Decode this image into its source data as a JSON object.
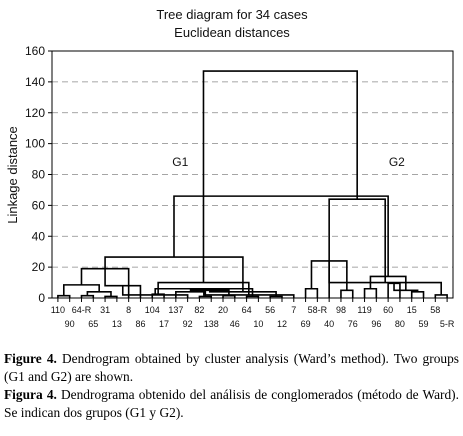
{
  "chart_data": {
    "type": "dendrogram",
    "title": "Tree diagram for 34 cases",
    "subtitle": "Euclidean distances",
    "ylabel": "Linkage distance",
    "ylim": [
      0,
      160
    ],
    "yticks": [
      0,
      20,
      40,
      60,
      80,
      100,
      120,
      140,
      160
    ],
    "grid": "horizontal dashed",
    "leaves": [
      "110",
      "90",
      "64-R",
      "65",
      "31",
      "13",
      "8",
      "86",
      "104",
      "17",
      "137",
      "92",
      "82",
      "138",
      "20",
      "46",
      "64",
      "10",
      "56",
      "12",
      "7",
      "69",
      "58-R",
      "40",
      "98",
      "76",
      "119",
      "96",
      "60",
      "80",
      "15",
      "59",
      "58",
      "5-R"
    ],
    "merges": [
      {
        "a": 0,
        "b": 1,
        "height": 1.5
      },
      {
        "a": 2,
        "b": 3,
        "height": 1.5
      },
      {
        "a": 4,
        "b": 5,
        "height": 1.0
      },
      {
        "a": 35,
        "b": 36,
        "height": 4.0
      },
      {
        "a": 34,
        "b": 37,
        "height": 8.5
      },
      {
        "a": 38,
        "b": 6,
        "height": 19.0
      },
      {
        "a": 8,
        "b": 9,
        "height": 2.5
      },
      {
        "a": 7,
        "b": 39,
        "height": 8.0
      },
      {
        "a": 12,
        "b": 13,
        "height": 1.0
      },
      {
        "a": 11,
        "b": 41,
        "height": 2.0
      },
      {
        "a": 10,
        "b": 42,
        "height": 4.0
      },
      {
        "a": 14,
        "b": 15,
        "height": 1.5
      },
      {
        "a": 16,
        "b": 17,
        "height": 1.0
      },
      {
        "a": 44,
        "b": 45,
        "height": 5.0
      },
      {
        "a": 43,
        "b": 46,
        "height": 6.0
      },
      {
        "a": 18,
        "b": 19,
        "height": 1.0
      },
      {
        "a": 48,
        "b": 20,
        "height": 2.0
      },
      {
        "a": 47,
        "b": 49,
        "height": 4.0
      },
      {
        "a": 40,
        "b": 50,
        "height": 10.0
      },
      {
        "a": 39,
        "b": 51,
        "height": 26.5
      },
      {
        "a": 21,
        "b": 22,
        "height": 6.0
      },
      {
        "a": 24,
        "b": 25,
        "height": 5.0
      },
      {
        "a": 26,
        "b": 27,
        "height": 6.0
      },
      {
        "a": 54,
        "b": 55,
        "height": 24.0
      },
      {
        "a": 28,
        "b": 29,
        "height": 9.5
      },
      {
        "a": 30,
        "b": 31,
        "height": 4.0
      },
      {
        "a": 32,
        "b": 33,
        "height": 2.0
      },
      {
        "a": 58,
        "b": 59,
        "height": 5.0
      },
      {
        "a": 57,
        "b": 60,
        "height": 10.0
      },
      {
        "a": 56,
        "b": 61,
        "height": 14.0
      },
      {
        "a": 62,
        "b": 23,
        "height": 64.0
      },
      {
        "a": 53,
        "b": 63,
        "height": 66.0
      },
      {
        "a": 52,
        "b": 64,
        "height": 147.0
      }
    ],
    "annotations": [
      {
        "text": "G1",
        "x": 0.32,
        "y": 88
      },
      {
        "text": "G2",
        "x": 0.86,
        "y": 88
      }
    ]
  },
  "caption": {
    "en_label": "Figure 4.",
    "en_text": " Dendrogram obtained by cluster analysis (Ward’s method). Two groups (G1 and G2) are shown.",
    "es_label": "Figura 4.",
    "es_text": " Dendrograma obtenido del análisis de conglomerados (método de Ward). Se indican dos grupos (G1 y G2)."
  }
}
